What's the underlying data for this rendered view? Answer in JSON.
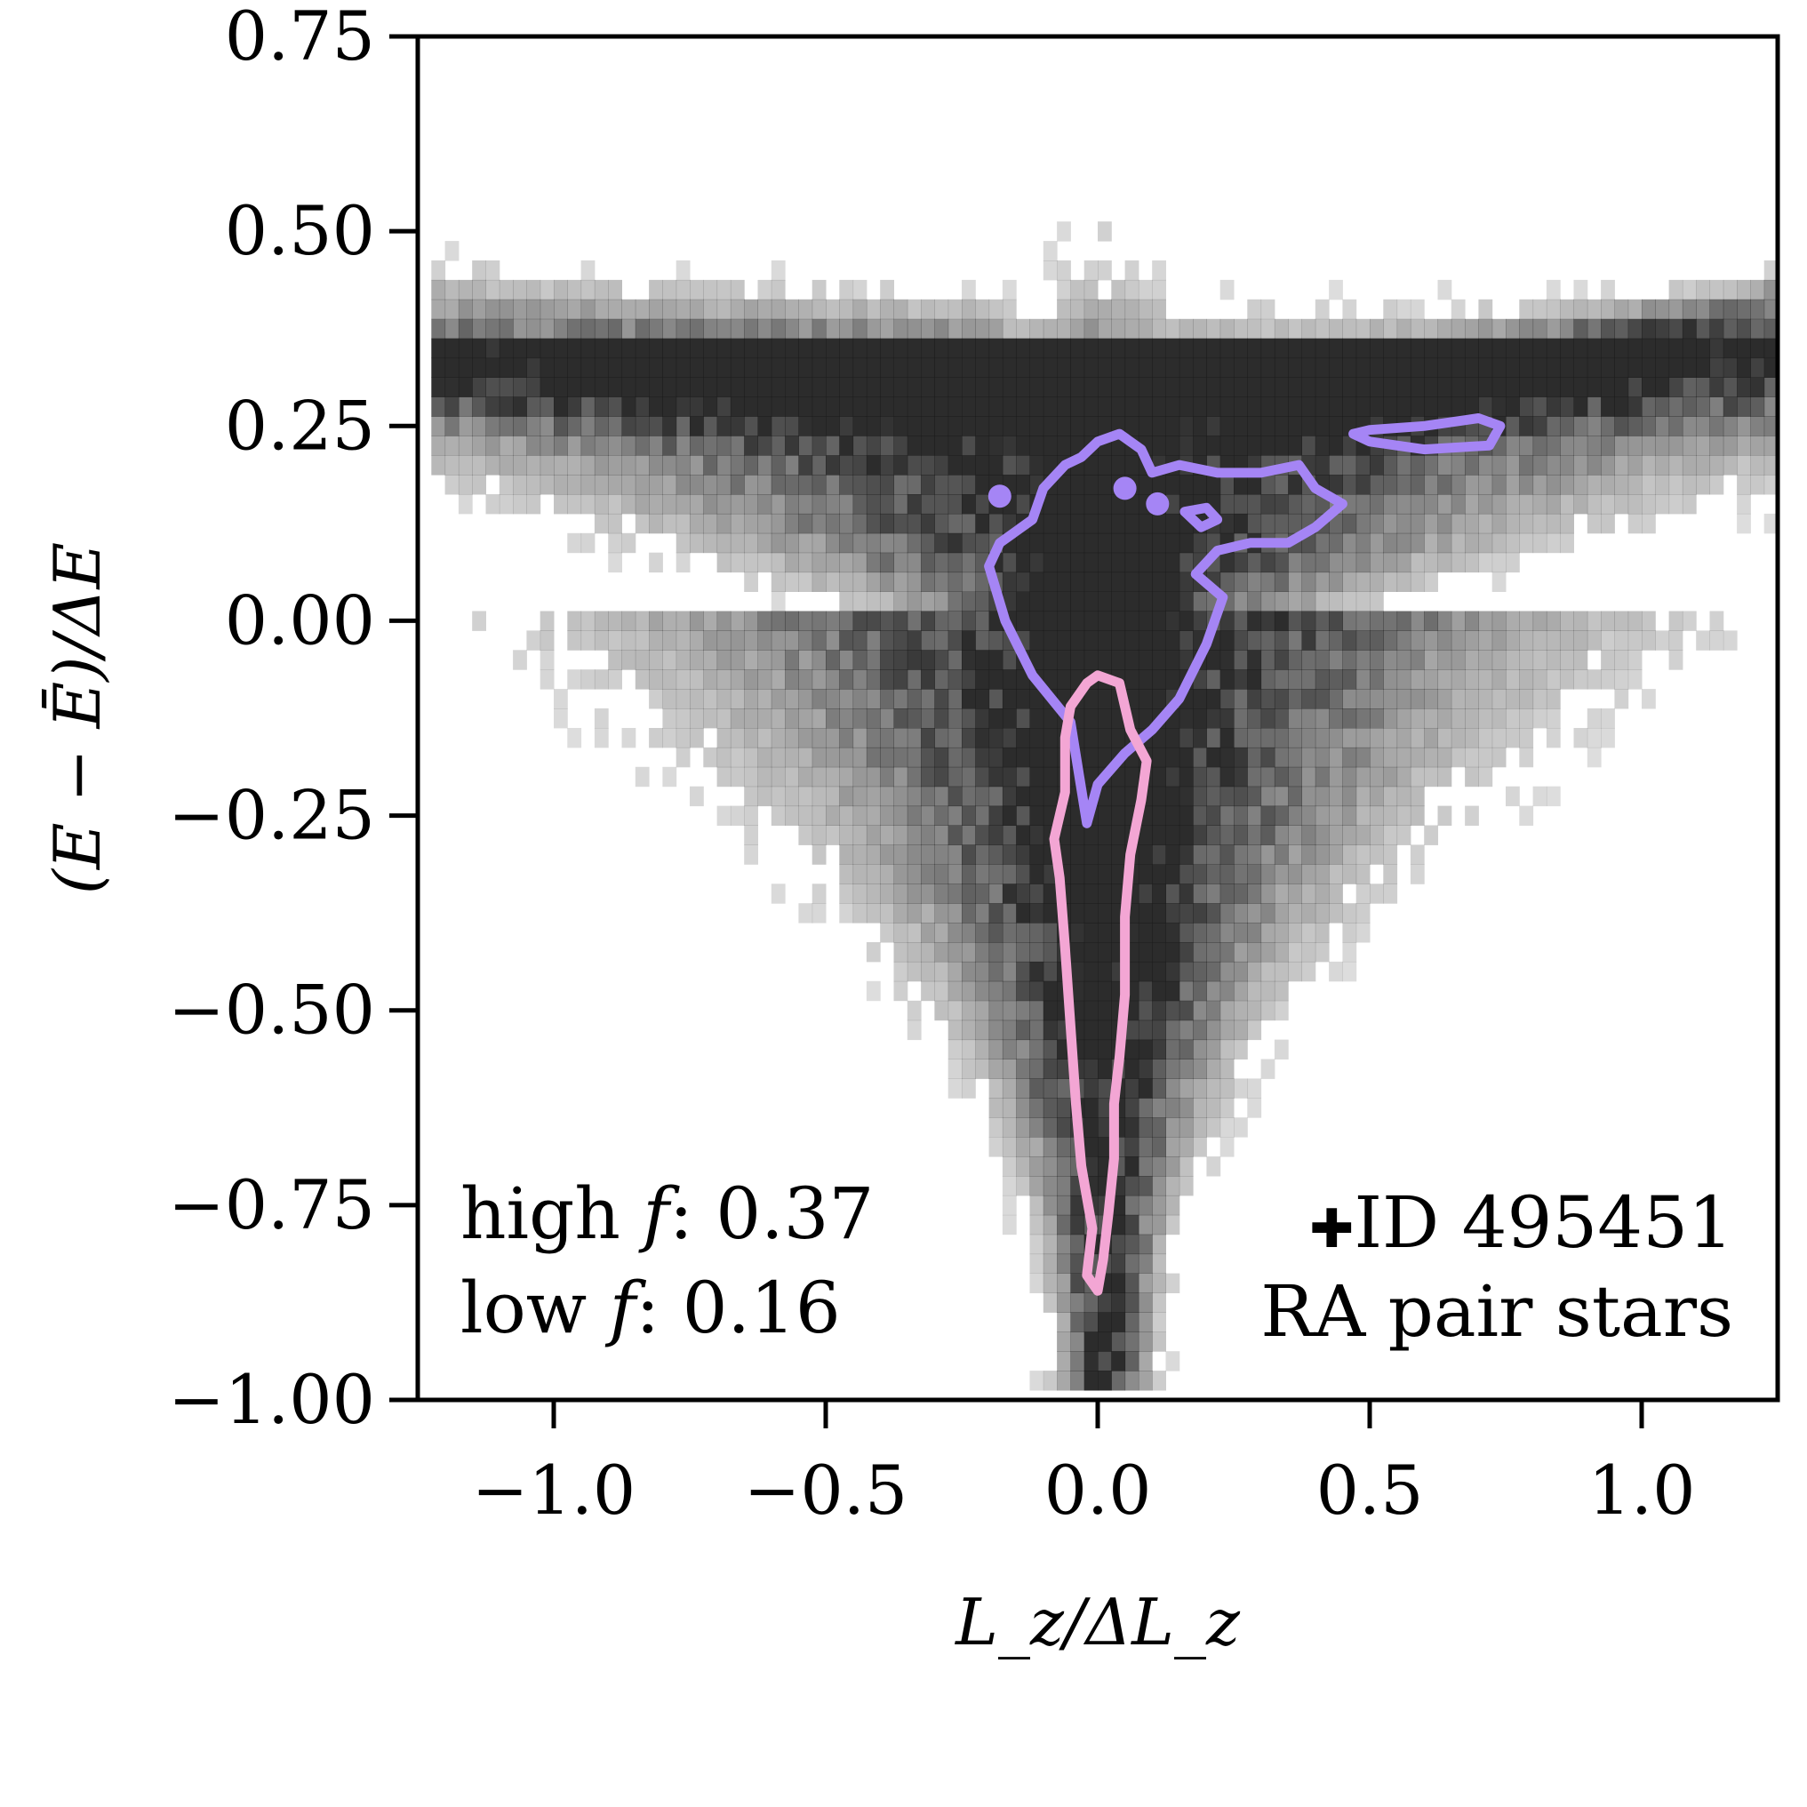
{
  "colors": {
    "high_f": "#a585f5",
    "low_f": "#f3a6d4",
    "axis": "#000000",
    "density_base": "#1a1a1a"
  },
  "chart_data": {
    "type": "heatmap",
    "title": "",
    "xlabel": "L_z/ΔL_z",
    "ylabel": "(E − Ē)/ΔE",
    "xlim": [
      -1.25,
      1.25
    ],
    "ylim": [
      -1.0,
      0.75
    ],
    "x_ticks": [
      "−1.0",
      "−0.5",
      "0.0",
      "0.5",
      "1.0"
    ],
    "x_tick_values": [
      -1.0,
      -0.5,
      0.0,
      0.5,
      1.0
    ],
    "y_ticks": [
      "0.75",
      "0.50",
      "0.25",
      "0.00",
      "−0.25",
      "−0.50",
      "−0.75",
      "−1.00"
    ],
    "y_tick_values": [
      0.75,
      0.5,
      0.25,
      0.0,
      -0.25,
      -0.5,
      -0.75,
      -1.0
    ],
    "density_description": "2D histogram of stellar orbital energy vs angular momentum; wide band near E≈0.25–0.4 across all Lz, narrowing to a thin spike at Lz≈0 down to −1.0",
    "contours": [
      {
        "name": "high f",
        "value": "0.37",
        "color": "#a585f5",
        "paths": [
          [
            [
              -0.02,
              -0.26
            ],
            [
              -0.05,
              -0.13
            ],
            [
              -0.12,
              -0.07
            ],
            [
              -0.17,
              0.0
            ],
            [
              -0.2,
              0.07
            ],
            [
              -0.18,
              0.1
            ],
            [
              -0.12,
              0.13
            ],
            [
              -0.1,
              0.17
            ],
            [
              -0.06,
              0.2
            ],
            [
              -0.03,
              0.21
            ],
            [
              0.0,
              0.23
            ],
            [
              0.04,
              0.24
            ],
            [
              0.08,
              0.22
            ],
            [
              0.1,
              0.19
            ],
            [
              0.15,
              0.2
            ],
            [
              0.22,
              0.19
            ],
            [
              0.3,
              0.19
            ],
            [
              0.37,
              0.2
            ],
            [
              0.4,
              0.17
            ],
            [
              0.45,
              0.15
            ],
            [
              0.4,
              0.12
            ],
            [
              0.35,
              0.1
            ],
            [
              0.28,
              0.1
            ],
            [
              0.22,
              0.09
            ],
            [
              0.18,
              0.06
            ],
            [
              0.23,
              0.03
            ],
            [
              0.2,
              -0.03
            ],
            [
              0.15,
              -0.1
            ],
            [
              0.1,
              -0.14
            ],
            [
              0.05,
              -0.17
            ],
            [
              0.0,
              -0.21
            ],
            [
              -0.02,
              -0.26
            ]
          ],
          [
            [
              0.47,
              0.24
            ],
            [
              0.5,
              0.245
            ],
            [
              0.6,
              0.25
            ],
            [
              0.7,
              0.26
            ],
            [
              0.74,
              0.25
            ],
            [
              0.72,
              0.225
            ],
            [
              0.6,
              0.22
            ],
            [
              0.5,
              0.23
            ],
            [
              0.47,
              0.24
            ]
          ],
          [
            [
              0.16,
              0.14
            ],
            [
              0.2,
              0.145
            ],
            [
              0.22,
              0.13
            ],
            [
              0.19,
              0.12
            ],
            [
              0.16,
              0.14
            ]
          ]
        ],
        "points": [
          [
            -0.18,
            0.16
          ],
          [
            0.05,
            0.17
          ],
          [
            0.11,
            0.15
          ]
        ]
      },
      {
        "name": "low f",
        "value": "0.16",
        "color": "#f3a6d4",
        "paths": [
          [
            [
              0.0,
              -0.07
            ],
            [
              0.04,
              -0.08
            ],
            [
              0.06,
              -0.14
            ],
            [
              0.09,
              -0.18
            ],
            [
              0.08,
              -0.23
            ],
            [
              0.06,
              -0.3
            ],
            [
              0.05,
              -0.38
            ],
            [
              0.05,
              -0.48
            ],
            [
              0.04,
              -0.56
            ],
            [
              0.03,
              -0.62
            ],
            [
              0.03,
              -0.69
            ],
            [
              0.02,
              -0.76
            ],
            [
              0.01,
              -0.82
            ],
            [
              0.0,
              -0.86
            ],
            [
              -0.02,
              -0.84
            ],
            [
              -0.01,
              -0.78
            ],
            [
              -0.03,
              -0.7
            ],
            [
              -0.04,
              -0.62
            ],
            [
              -0.05,
              -0.52
            ],
            [
              -0.06,
              -0.42
            ],
            [
              -0.07,
              -0.33
            ],
            [
              -0.08,
              -0.28
            ],
            [
              -0.06,
              -0.22
            ],
            [
              -0.06,
              -0.15
            ],
            [
              -0.05,
              -0.11
            ],
            [
              -0.02,
              -0.08
            ],
            [
              0.0,
              -0.07
            ]
          ]
        ]
      }
    ],
    "legend": [
      {
        "label": "high ",
        "symbol": "f",
        "value": ": 0.37",
        "color": "#a585f5"
      },
      {
        "label": "low ",
        "symbol": "f",
        "value": ": 0.16",
        "color": "#f3a6d4"
      }
    ],
    "annotation": {
      "marker": "✚",
      "id_text": "ID 495451",
      "subtitle": "RA pair stars",
      "placement": "bottom-right"
    }
  }
}
